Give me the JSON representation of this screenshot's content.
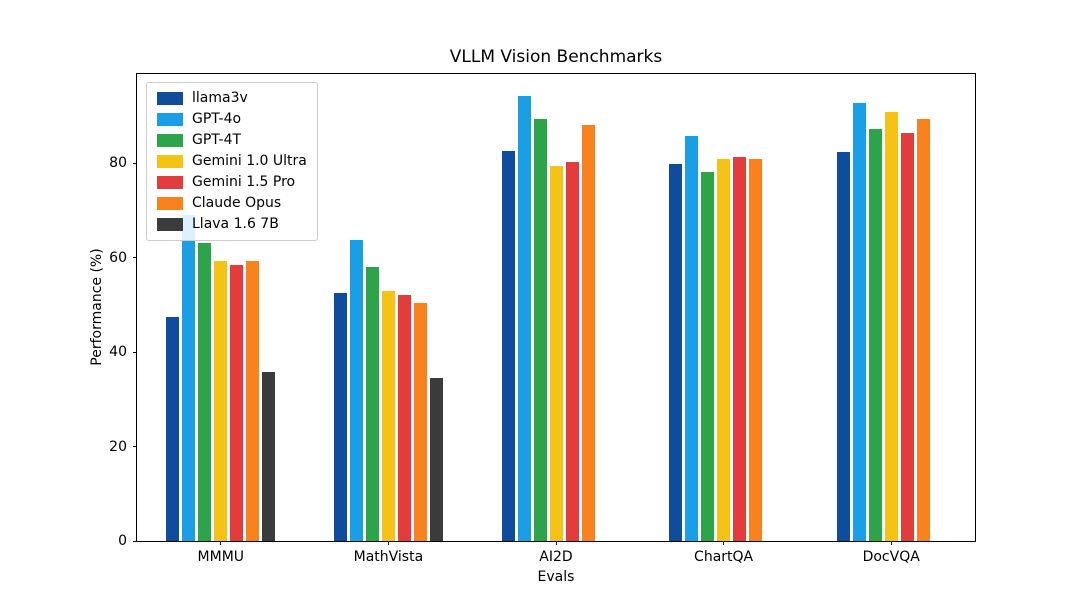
{
  "chart_data": {
    "type": "bar",
    "title": "VLLM Vision Benchmarks",
    "xlabel": "Evals",
    "ylabel": "Performance (%)",
    "categories": [
      "MMMU",
      "MathVista",
      "AI2D",
      "ChartQA",
      "DocVQA"
    ],
    "series": [
      {
        "name": "llama3v",
        "color": "#0f4c9c",
        "values": [
          47.5,
          52.6,
          82.5,
          79.8,
          82.3
        ]
      },
      {
        "name": "GPT-4o",
        "color": "#1a9ee5",
        "values": [
          69.1,
          63.8,
          94.2,
          85.7,
          92.8
        ]
      },
      {
        "name": "GPT-4T",
        "color": "#2da44a",
        "values": [
          63.1,
          58.1,
          89.4,
          78.1,
          87.2
        ]
      },
      {
        "name": "Gemini 1.0 Ultra",
        "color": "#f5c216",
        "values": [
          59.4,
          53.0,
          79.5,
          80.8,
          90.9
        ]
      },
      {
        "name": "Gemini 1.5 Pro",
        "color": "#e23c3c",
        "values": [
          58.5,
          52.1,
          80.3,
          81.3,
          86.5
        ]
      },
      {
        "name": "Claude Opus",
        "color": "#f8821e",
        "values": [
          59.4,
          50.5,
          88.1,
          80.8,
          89.3
        ]
      },
      {
        "name": "Llava 1.6 7B",
        "color": "#3b3b3b",
        "values": [
          35.8,
          34.6,
          null,
          null,
          null
        ]
      }
    ],
    "yticks": [
      0,
      20,
      40,
      60,
      80
    ],
    "ylim": [
      0,
      98.9
    ],
    "legend_position": "upper left",
    "grid": false,
    "background_color": "#ffffff",
    "axis_color": "#000000"
  }
}
